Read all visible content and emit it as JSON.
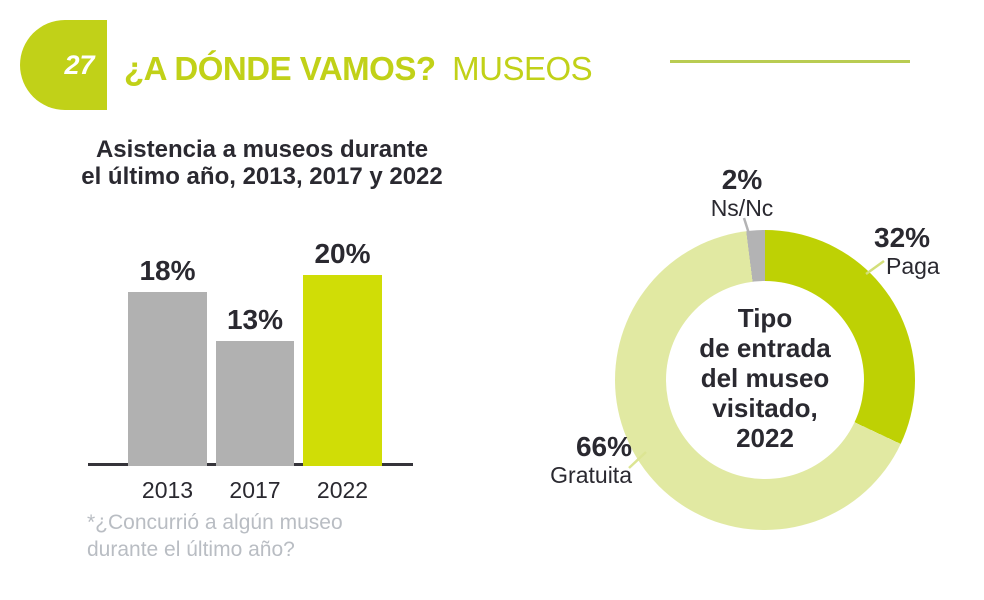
{
  "theme": {
    "accent": "#c1d118",
    "header_rule": "#b9cc52",
    "bar_lime": "#d0dd06",
    "bar_gray": "#b1b1b1",
    "donut_paga": "#bed104",
    "donut_gratuita": "#e1e9a2",
    "donut_nsnc": "#b3b3b4",
    "dark_text": "#2a2930",
    "footnote_gray": "#b9bdc3"
  },
  "header": {
    "badge_number": "27",
    "title_bold": "¿A DÓNDE VAMOS?",
    "title_light": "MUSEOS"
  },
  "chart_data": [
    {
      "type": "bar",
      "title": "Asistencia a museos durante el último año, 2013, 2017 y 2022",
      "title_lines": [
        "Asistencia a museos durante",
        "el último año, 2013, 2017 y 2022"
      ],
      "categories": [
        "2013",
        "2017",
        "2022"
      ],
      "values": [
        18,
        13,
        20
      ],
      "value_labels": [
        "18%",
        "13%",
        "20%"
      ],
      "bar_colors": [
        "#b1b1b1",
        "#b1b1b1",
        "#d0dd06"
      ],
      "ylim": [
        0,
        22
      ],
      "grid": false,
      "footnote_lines": [
        "*¿Concurrió a algún museo",
        "durante el último año?"
      ]
    },
    {
      "type": "pie",
      "subtype": "donut",
      "title": "Tipo de entrada del museo visitado, 2022",
      "center_label_lines": [
        "Tipo",
        "de entrada",
        "del museo",
        "visitado,",
        "2022"
      ],
      "start_angle_deg": 0,
      "legend_position": "around-labels",
      "segments": [
        {
          "label": "Paga",
          "value": 32,
          "display": "32%",
          "color": "#bed104"
        },
        {
          "label": "Gratuita",
          "value": 66,
          "display": "66%",
          "color": "#e1e9a2"
        },
        {
          "label": "Ns/Nc",
          "value": 2,
          "display": "2%",
          "color": "#b3b3b4"
        }
      ]
    }
  ]
}
